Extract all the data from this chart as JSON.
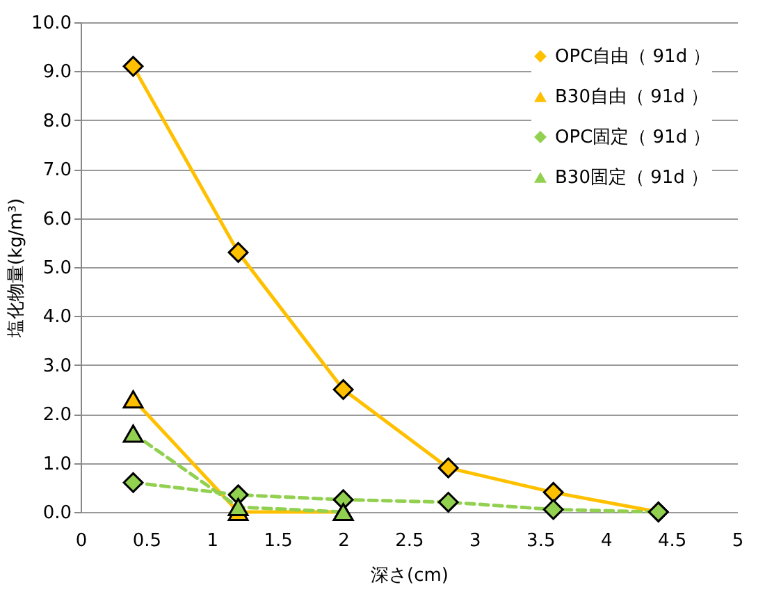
{
  "chart_data": {
    "type": "line",
    "xlabel": "深さ(cm)",
    "ylabel": "塩化物量(kg/m³)",
    "x": [
      0.4,
      1.2,
      2.0,
      2.8,
      3.6,
      4.4
    ],
    "series": [
      {
        "name": "OPC自由（ 91d ）",
        "color": "#ffc000",
        "marker": "diamond",
        "line_style": "solid",
        "values": [
          9.1,
          5.3,
          2.5,
          0.9,
          0.4,
          0.0
        ]
      },
      {
        "name": "B30自由（ 91d ）",
        "color": "#ffc000",
        "marker": "triangle",
        "line_style": "solid",
        "x": [
          0.4,
          1.2,
          2.0
        ],
        "values": [
          2.3,
          0.0,
          0.0
        ]
      },
      {
        "name": "OPC固定（ 91d ）",
        "color": "#92d050",
        "marker": "diamond",
        "line_style": "dashed",
        "values": [
          0.6,
          0.35,
          0.25,
          0.2,
          0.05,
          0.0
        ]
      },
      {
        "name": "B30固定（ 91d ）",
        "color": "#92d050",
        "marker": "triangle",
        "line_style": "dashed",
        "x": [
          0.4,
          1.2,
          2.0
        ],
        "values": [
          1.6,
          0.1,
          0.0
        ]
      }
    ],
    "xlim": [
      0,
      5
    ],
    "xticks": [
      0,
      0.5,
      1,
      1.5,
      2,
      2.5,
      3,
      3.5,
      4,
      4.5,
      5
    ],
    "ylim": [
      0,
      10
    ],
    "yticks": [
      {
        "value": 0,
        "label": "0.0"
      },
      {
        "value": 1,
        "label": "1.0"
      },
      {
        "value": 2,
        "label": "2.0"
      },
      {
        "value": 3,
        "label": "3.0"
      },
      {
        "value": 4,
        "label": "4.0"
      },
      {
        "value": 5,
        "label": "5.0"
      },
      {
        "value": 6,
        "label": "6.0"
      },
      {
        "value": 7,
        "label": "7.0"
      },
      {
        "value": 8,
        "label": "8.0"
      },
      {
        "value": 9,
        "label": "9.0"
      },
      {
        "value": 10,
        "label": "10.0"
      }
    ],
    "grid": "y",
    "legend": "top right"
  }
}
